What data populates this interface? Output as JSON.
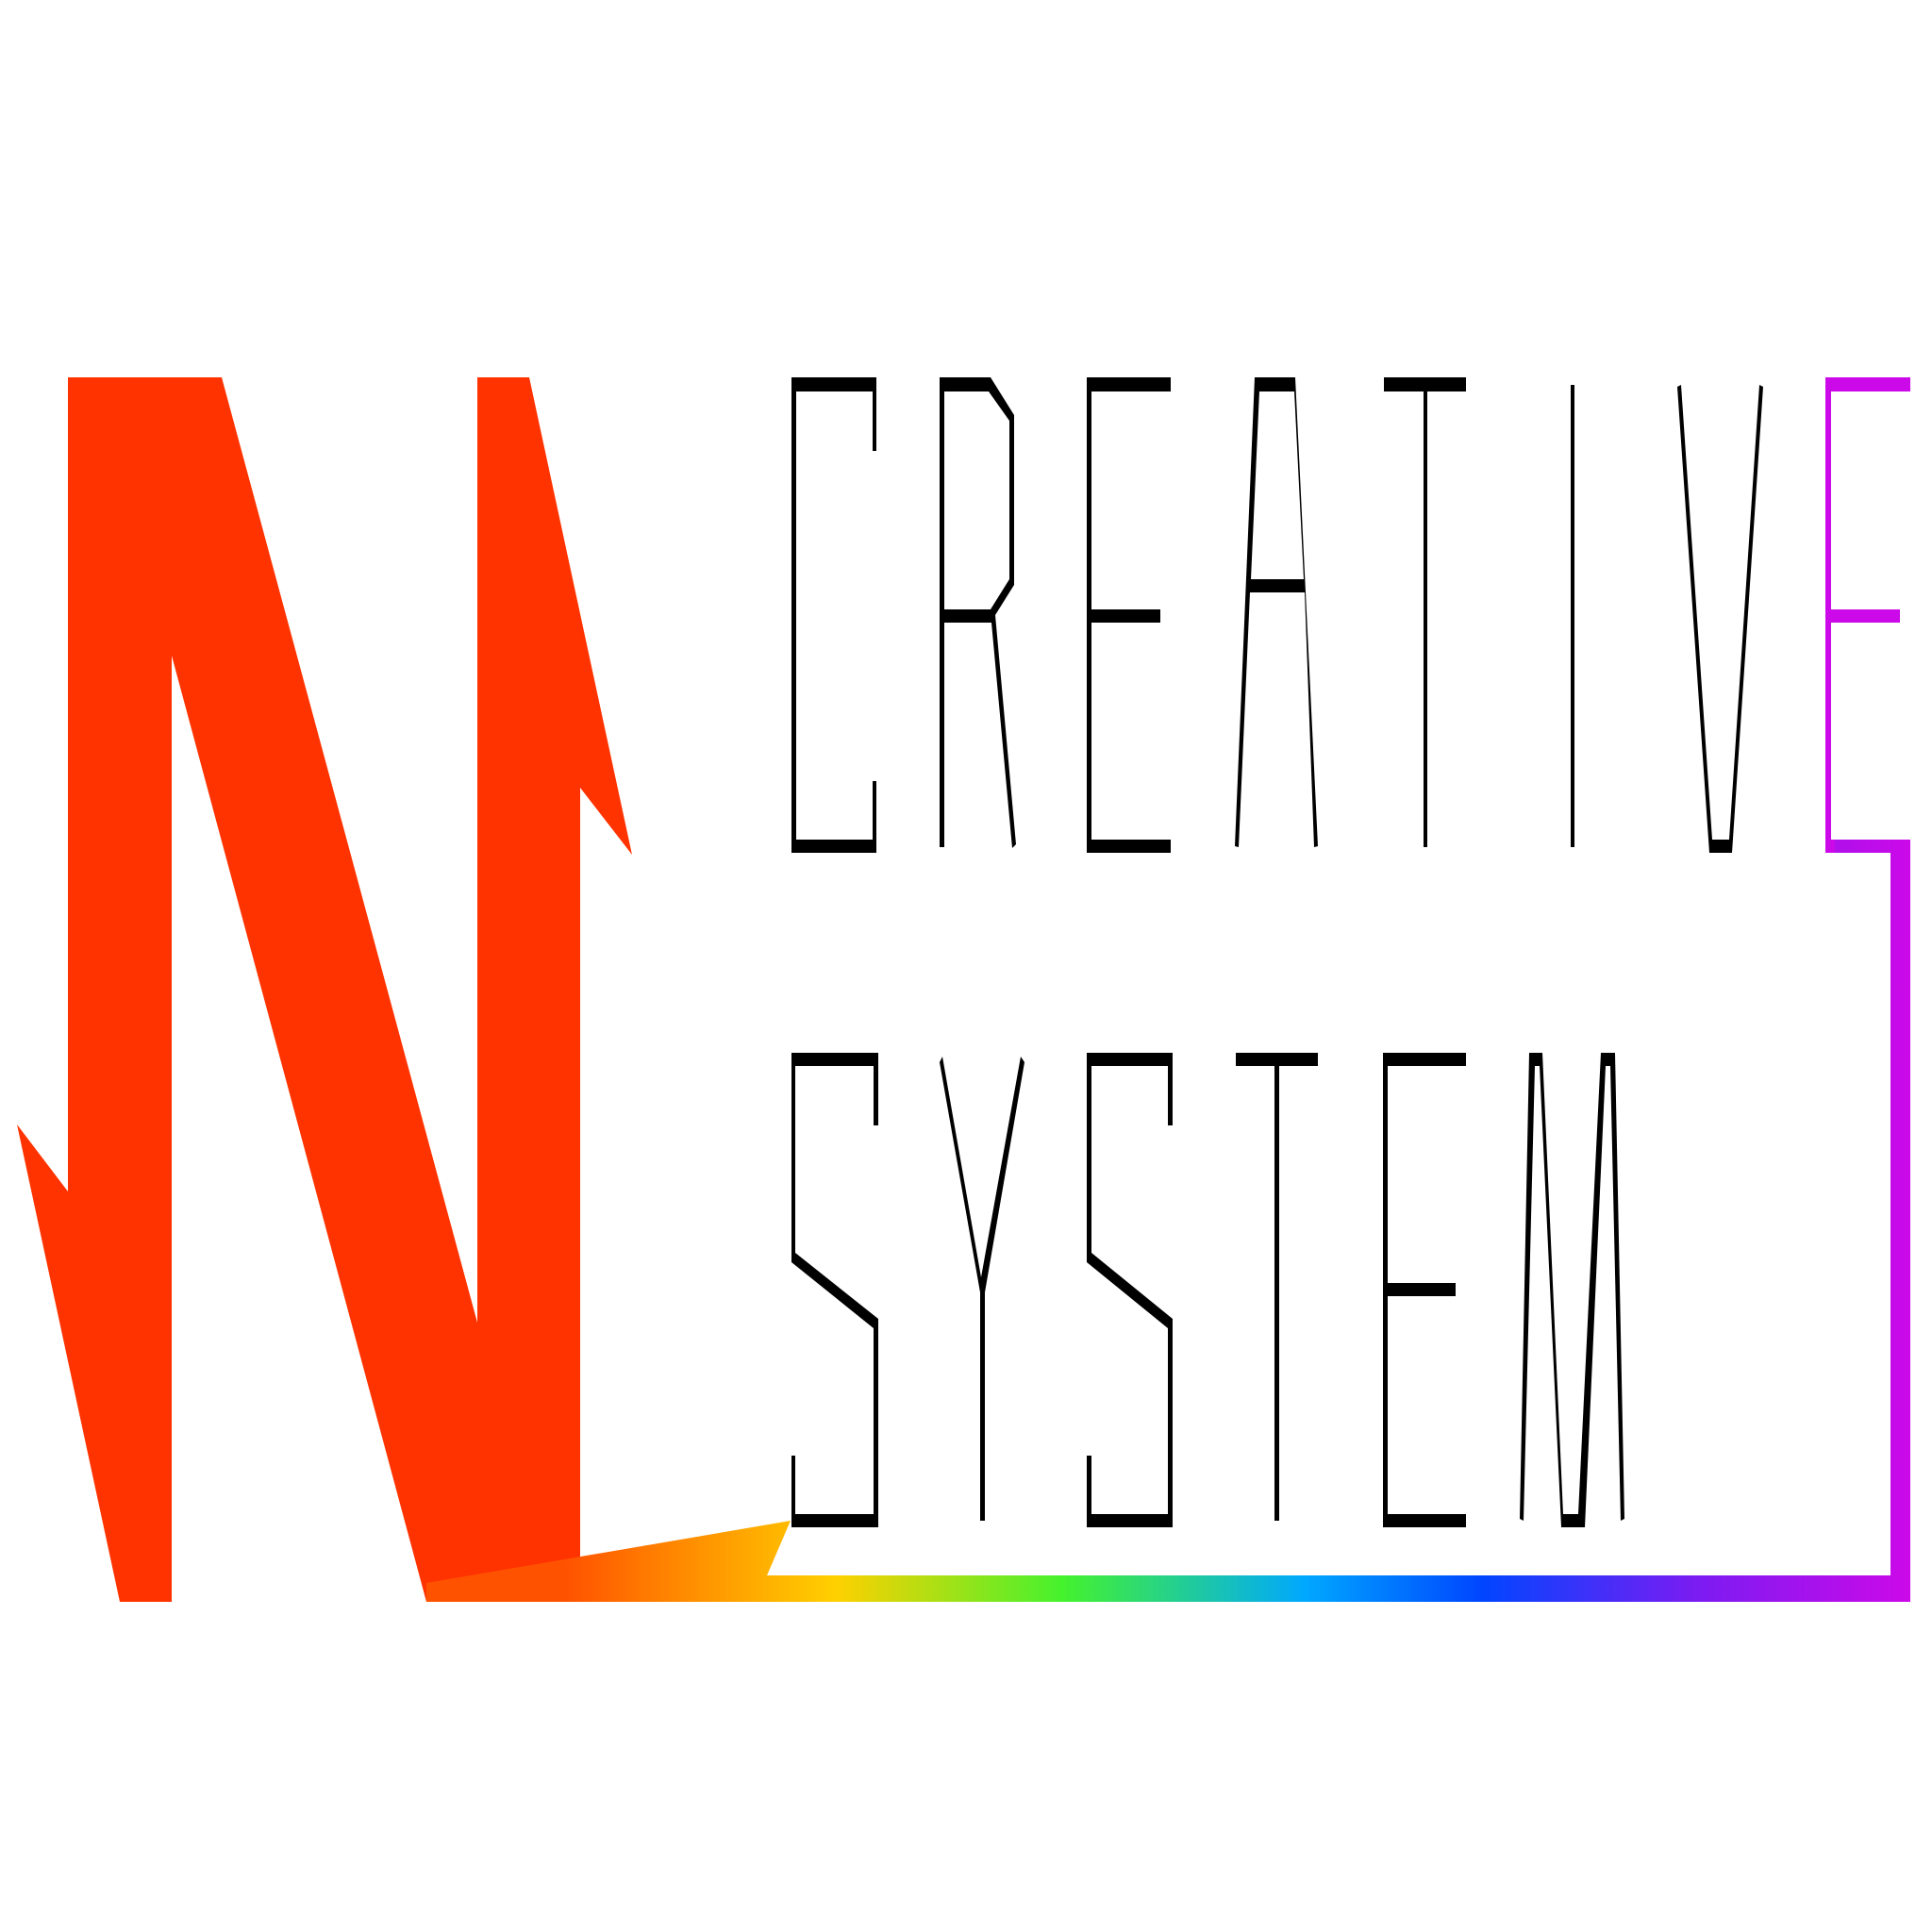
{
  "logo": {
    "monogram": "N",
    "line1": "CREATIVE",
    "line2": "SYSTEM"
  },
  "colors": {
    "monogram": "#ff3300",
    "text": "#000000",
    "accent": "#cc09e8",
    "gradient": [
      "#ff3300",
      "#ff7a00",
      "#ffd000",
      "#44f22e",
      "#00a8ff",
      "#0046ff",
      "#cc09e8"
    ]
  }
}
